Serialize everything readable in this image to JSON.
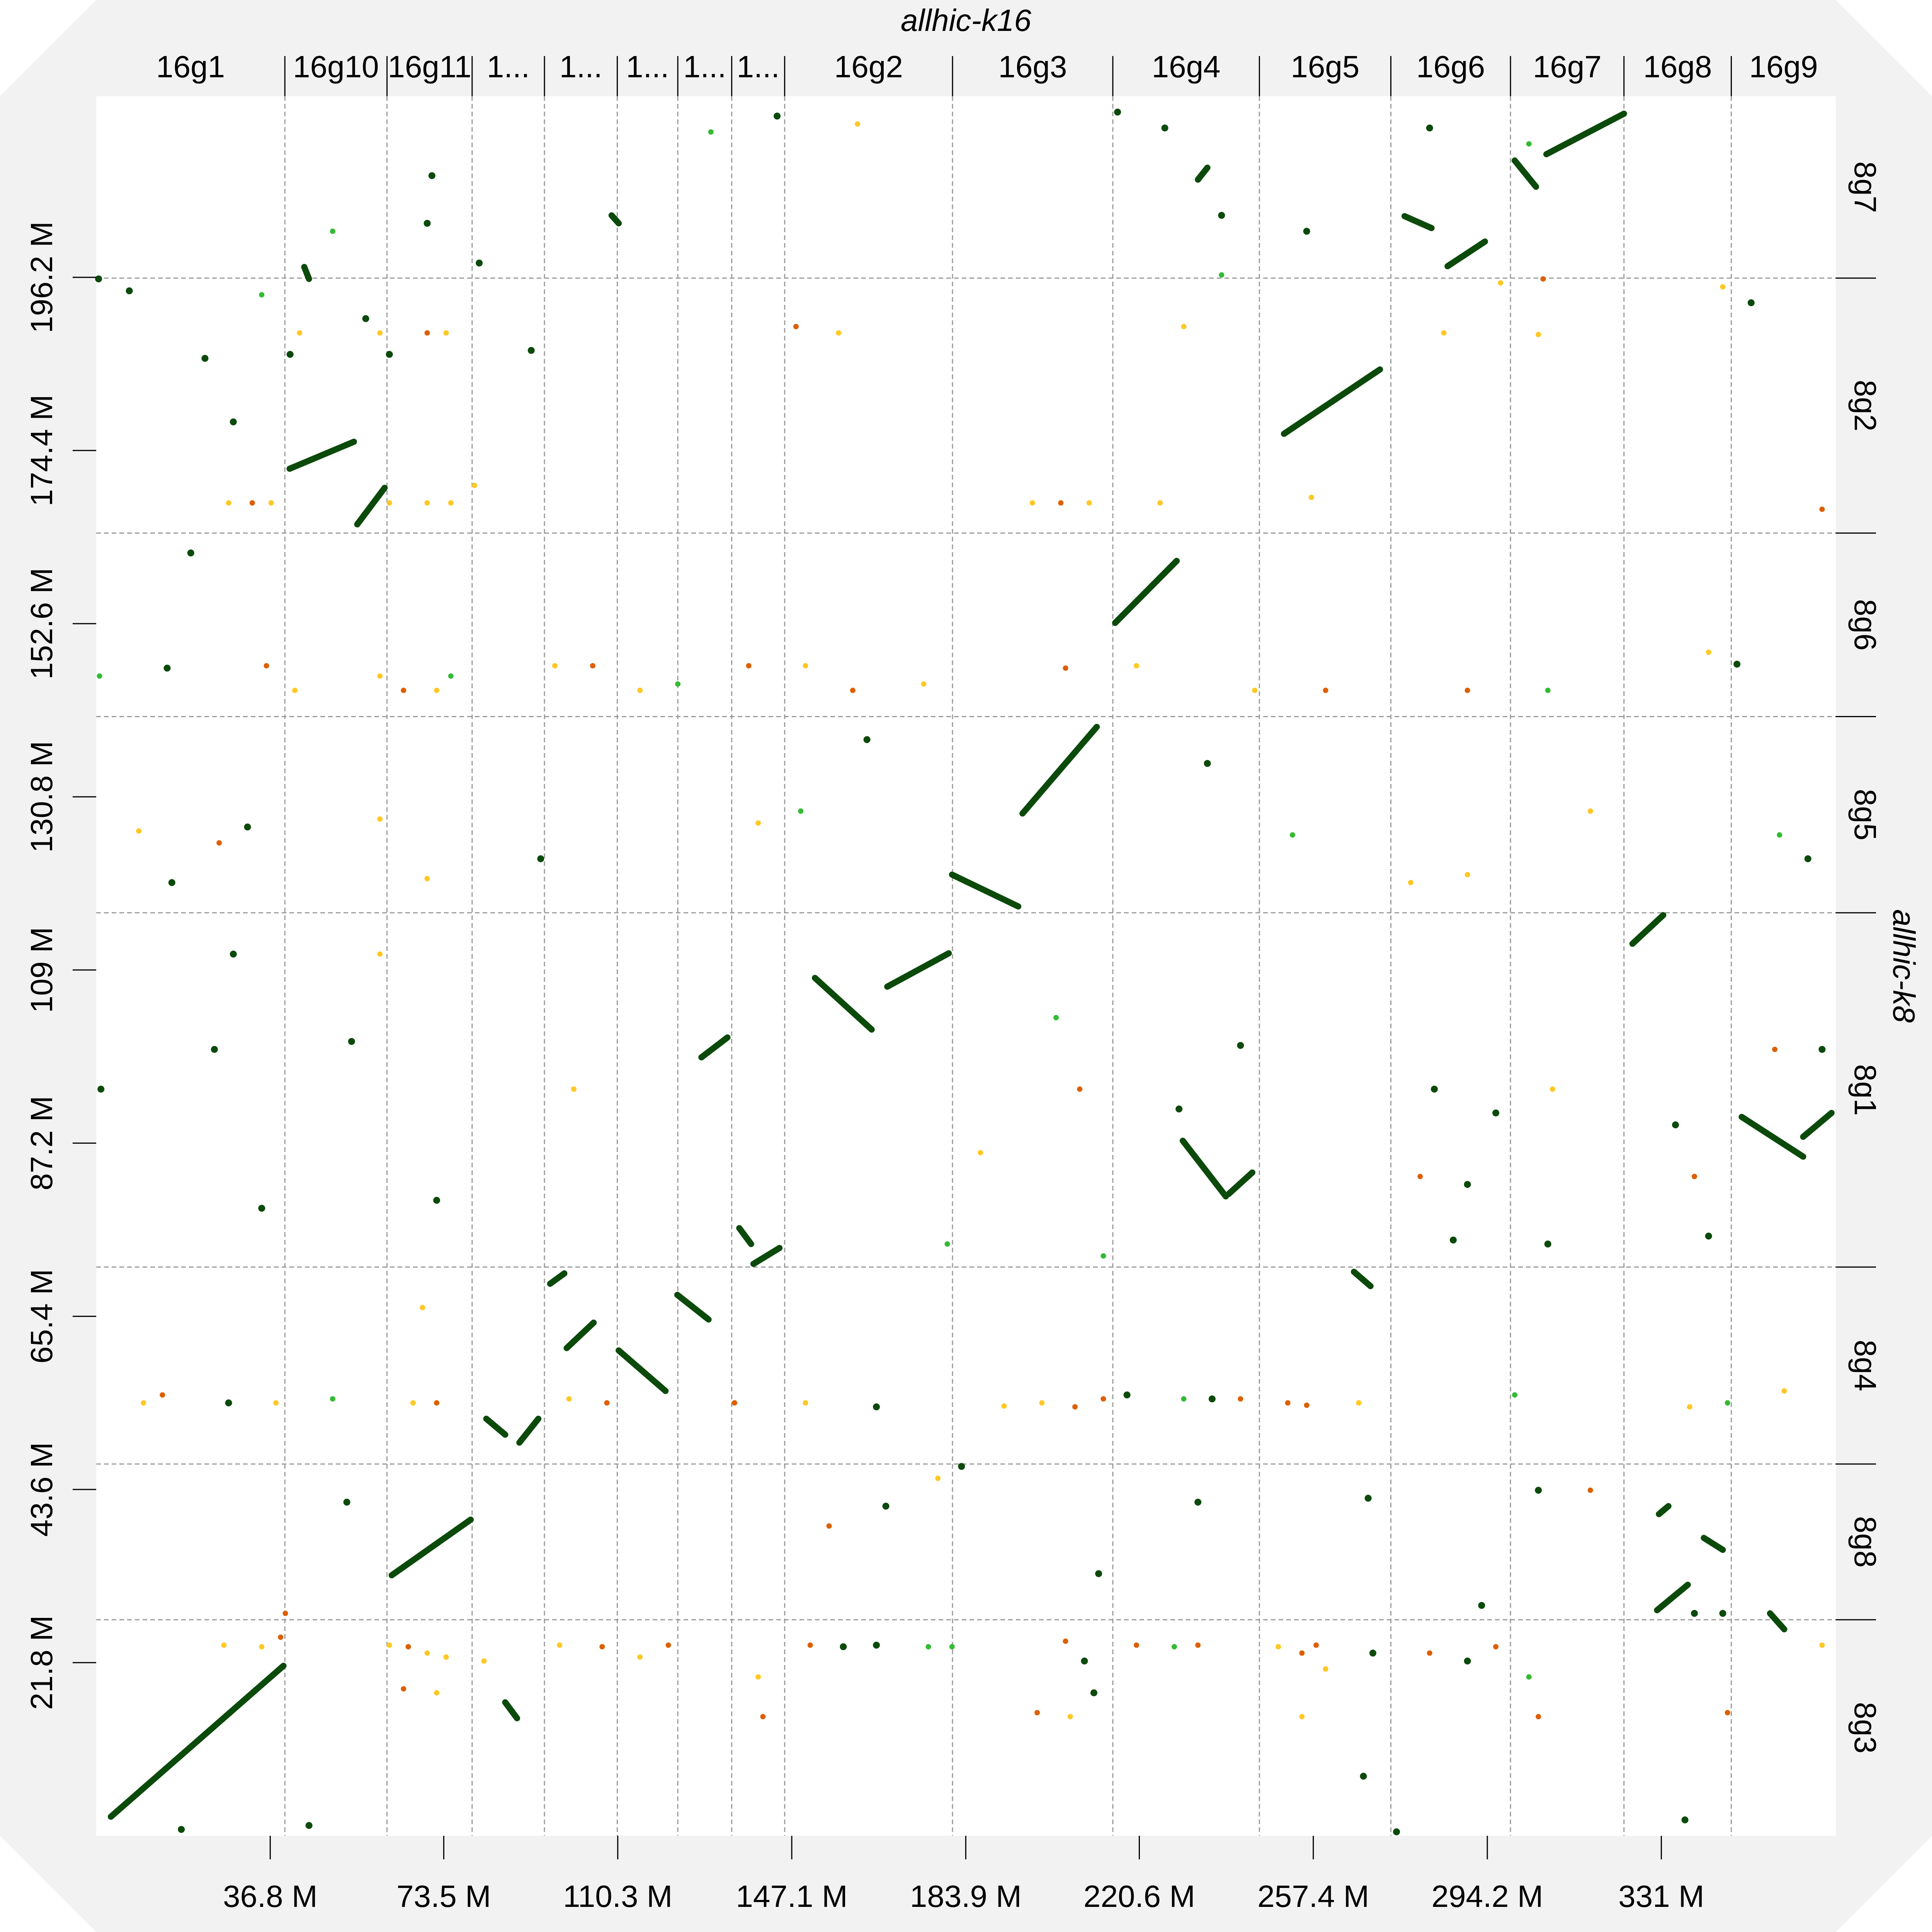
{
  "chart_data": {
    "type": "scatter",
    "title": "allhic-k16",
    "xlabel": "allhic-k16",
    "ylabel": "allhic-k8",
    "xlim": [
      0,
      367.9
    ],
    "ylim": [
      0,
      219.0
    ],
    "grid": "dashed contig boundaries",
    "x_ticks": [
      {
        "value": 36.8,
        "label": "36.8 M"
      },
      {
        "value": 73.5,
        "label": "73.5 M"
      },
      {
        "value": 110.3,
        "label": "110.3 M"
      },
      {
        "value": 147.1,
        "label": "147.1 M"
      },
      {
        "value": 183.9,
        "label": "183.9 M"
      },
      {
        "value": 220.6,
        "label": "220.6 M"
      },
      {
        "value": 257.4,
        "label": "257.4 M"
      },
      {
        "value": 294.2,
        "label": "294.2 M"
      },
      {
        "value": 331,
        "label": "331 M"
      }
    ],
    "y_ticks": [
      {
        "value": 21.8,
        "label": "21.8 M"
      },
      {
        "value": 43.6,
        "label": "43.6 M"
      },
      {
        "value": 65.4,
        "label": "65.4 M"
      },
      {
        "value": 87.2,
        "label": "87.2 M"
      },
      {
        "value": 109,
        "label": "109 M"
      },
      {
        "value": 130.8,
        "label": "130.8 M"
      },
      {
        "value": 152.6,
        "label": "152.6 M"
      },
      {
        "value": 174.4,
        "label": "174.4 M"
      },
      {
        "value": 196.2,
        "label": "196.2 M"
      }
    ],
    "x_contigs": [
      {
        "label": "16g1",
        "start": 0,
        "end": 39.9
      },
      {
        "label": "16g10",
        "start": 39.9,
        "end": 61.5
      },
      {
        "label": "16g11",
        "start": 61.5,
        "end": 79.5
      },
      {
        "label": "1...",
        "start": 79.5,
        "end": 94.8
      },
      {
        "label": "1...",
        "start": 94.8,
        "end": 110.2
      },
      {
        "label": "1...",
        "start": 110.2,
        "end": 123.0
      },
      {
        "label": "1...",
        "start": 123.0,
        "end": 134.4
      },
      {
        "label": "1...",
        "start": 134.4,
        "end": 145.6
      },
      {
        "label": "16g2",
        "start": 145.6,
        "end": 181.1
      },
      {
        "label": "16g3",
        "start": 181.1,
        "end": 215.0
      },
      {
        "label": "16g4",
        "start": 215.0,
        "end": 246.0
      },
      {
        "label": "16g5",
        "start": 246.0,
        "end": 273.8
      },
      {
        "label": "16g6",
        "start": 273.8,
        "end": 299.1
      },
      {
        "label": "16g7",
        "start": 299.1,
        "end": 323.1
      },
      {
        "label": "16g8",
        "start": 323.1,
        "end": 345.8
      },
      {
        "label": "16g9",
        "start": 345.8,
        "end": 367.9
      }
    ],
    "y_contigs": [
      {
        "label": "8g3",
        "start": 0,
        "end": 27.2
      },
      {
        "label": "8g8",
        "start": 27.2,
        "end": 46.8
      },
      {
        "label": "8g4",
        "start": 46.8,
        "end": 71.6
      },
      {
        "label": "8g1",
        "start": 71.6,
        "end": 116.2
      },
      {
        "label": "8g5",
        "start": 116.2,
        "end": 140.9
      },
      {
        "label": "8g6",
        "start": 140.9,
        "end": 164.0
      },
      {
        "label": "8g2",
        "start": 164.0,
        "end": 196.1
      },
      {
        "label": "8g7",
        "start": 196.1,
        "end": 219.0
      }
    ],
    "colors": {
      "d": "#0b4a0b",
      "g": "#33bb33",
      "y": "#ffc826",
      "o": "#dd5f00"
    },
    "segments": [
      [
        3.1,
        2.4,
        39.6,
        21.4
      ],
      [
        40.9,
        172.1,
        54.5,
        175.5
      ],
      [
        55.2,
        165.1,
        61.0,
        169.7
      ],
      [
        62.5,
        32.8,
        79.2,
        39.8
      ],
      [
        195.9,
        128.7,
        211.6,
        139.6
      ],
      [
        181.0,
        121.0,
        195.0,
        117.0
      ],
      [
        215.5,
        152.7,
        228.5,
        160.5
      ],
      [
        229.8,
        87.5,
        238.9,
        80.5
      ],
      [
        239.5,
        80.8,
        244.5,
        83.5
      ],
      [
        251.2,
        176.5,
        271.5,
        184.6
      ],
      [
        276.7,
        203.9,
        282.4,
        202.4
      ],
      [
        285.8,
        197.6,
        293.7,
        200.7
      ],
      [
        306.7,
        211.7,
        323.1,
        216.8
      ],
      [
        300.0,
        210.9,
        304.5,
        207.6
      ],
      [
        324.9,
        112.3,
        331.4,
        115.9
      ],
      [
        167.3,
        106.9,
        180.3,
        111.1
      ],
      [
        152.0,
        108.0,
        164.0,
        101.5
      ],
      [
        96.0,
        69.5,
        99.0,
        70.8
      ],
      [
        99.5,
        61.4,
        105.2,
        64.6
      ],
      [
        110.5,
        61.1,
        120.4,
        56.0
      ],
      [
        122.9,
        68.1,
        129.5,
        65.0
      ],
      [
        82.5,
        52.5,
        86.5,
        50.5
      ],
      [
        89.5,
        49.5,
        93.5,
        52.5
      ],
      [
        136.0,
        76.5,
        138.5,
        74.5
      ],
      [
        139.0,
        72.0,
        144.5,
        74.0
      ],
      [
        128.0,
        98.0,
        133.5,
        100.5
      ],
      [
        330.1,
        28.4,
        336.6,
        31.6
      ],
      [
        340.0,
        37.5,
        344.0,
        36.0
      ],
      [
        348.0,
        90.5,
        361.0,
        85.5
      ],
      [
        361.0,
        88.0,
        367.0,
        91.0
      ],
      [
        266.0,
        71.0,
        269.5,
        69.2
      ],
      [
        86.5,
        16.8,
        89.0,
        14.8
      ],
      [
        233.0,
        208.5,
        235.0,
        210.0
      ],
      [
        109.0,
        204.0,
        110.5,
        203.0
      ],
      [
        44.0,
        197.5,
        45.0,
        196.0
      ],
      [
        354.0,
        28.0,
        357.0,
        26.0
      ],
      [
        330.5,
        40.5,
        332.5,
        41.5
      ]
    ],
    "points": [
      [
        0.5,
        196.0,
        "d"
      ],
      [
        23.0,
        186.0,
        "d"
      ],
      [
        29.0,
        178.0,
        "d"
      ],
      [
        41.0,
        186.5,
        "d"
      ],
      [
        57.0,
        191.0,
        "d"
      ],
      [
        62.0,
        186.5,
        "d"
      ],
      [
        81.0,
        198.0,
        "d"
      ],
      [
        92.0,
        187.0,
        "d"
      ],
      [
        35.0,
        194.0,
        "g"
      ],
      [
        7.0,
        194.5,
        "d"
      ],
      [
        20.0,
        161.5,
        "d"
      ],
      [
        71.0,
        209.0,
        "d"
      ],
      [
        28.0,
        167.8,
        "y"
      ],
      [
        33.0,
        167.8,
        "o"
      ],
      [
        37.0,
        167.8,
        "y"
      ],
      [
        62.0,
        167.8,
        "y"
      ],
      [
        70.0,
        167.8,
        "y"
      ],
      [
        75.0,
        167.8,
        "y"
      ],
      [
        80.0,
        170.0,
        "y"
      ],
      [
        198.0,
        167.8,
        "y"
      ],
      [
        204.0,
        167.8,
        "o"
      ],
      [
        210.0,
        167.8,
        "y"
      ],
      [
        225.0,
        167.8,
        "y"
      ],
      [
        257.0,
        168.5,
        "y"
      ],
      [
        43.0,
        189.2,
        "y"
      ],
      [
        60.0,
        189.2,
        "y"
      ],
      [
        70.0,
        189.2,
        "o"
      ],
      [
        74.0,
        189.2,
        "y"
      ],
      [
        148.0,
        190.0,
        "o"
      ],
      [
        157.0,
        189.2,
        "y"
      ],
      [
        230.0,
        190.0,
        "y"
      ],
      [
        285.0,
        189.2,
        "y"
      ],
      [
        305.0,
        189.0,
        "y"
      ],
      [
        365.0,
        167.0,
        "o"
      ],
      [
        0.7,
        146.0,
        "g"
      ],
      [
        15.0,
        147.0,
        "d"
      ],
      [
        36.0,
        147.3,
        "o"
      ],
      [
        42.0,
        144.2,
        "y"
      ],
      [
        60.0,
        146.0,
        "y"
      ],
      [
        65.0,
        144.2,
        "o"
      ],
      [
        72.0,
        144.2,
        "y"
      ],
      [
        75.0,
        146.0,
        "g"
      ],
      [
        97.0,
        147.3,
        "y"
      ],
      [
        105.0,
        147.3,
        "o"
      ],
      [
        115.0,
        144.2,
        "y"
      ],
      [
        123.0,
        145.0,
        "g"
      ],
      [
        138.0,
        147.3,
        "o"
      ],
      [
        150.0,
        147.3,
        "y"
      ],
      [
        160.0,
        144.2,
        "o"
      ],
      [
        175.0,
        145.0,
        "y"
      ],
      [
        205.0,
        147.0,
        "o"
      ],
      [
        220.0,
        147.3,
        "y"
      ],
      [
        245.0,
        144.2,
        "y"
      ],
      [
        260.0,
        144.2,
        "o"
      ],
      [
        290.0,
        144.2,
        "o"
      ],
      [
        307.0,
        144.2,
        "g"
      ],
      [
        341.0,
        149.0,
        "y"
      ],
      [
        347.0,
        147.5,
        "d"
      ],
      [
        9.0,
        126.5,
        "y"
      ],
      [
        26.0,
        125.0,
        "o"
      ],
      [
        32.0,
        127.0,
        "d"
      ],
      [
        16.0,
        120.0,
        "d"
      ],
      [
        60.0,
        128.0,
        "y"
      ],
      [
        70.0,
        120.5,
        "y"
      ],
      [
        94.0,
        123.0,
        "d"
      ],
      [
        140.0,
        127.5,
        "y"
      ],
      [
        149.0,
        129.0,
        "g"
      ],
      [
        163.0,
        138.0,
        "d"
      ],
      [
        235.0,
        135.0,
        "d"
      ],
      [
        253.0,
        126.0,
        "g"
      ],
      [
        278.0,
        120.0,
        "y"
      ],
      [
        290.0,
        121.0,
        "y"
      ],
      [
        316.0,
        129.0,
        "y"
      ],
      [
        356.0,
        126.0,
        "g"
      ],
      [
        362.0,
        123.0,
        "d"
      ],
      [
        29.0,
        111.0,
        "d"
      ],
      [
        25.0,
        99.0,
        "d"
      ],
      [
        60.0,
        111.0,
        "y"
      ],
      [
        54.0,
        100.0,
        "d"
      ],
      [
        101.0,
        94.0,
        "y"
      ],
      [
        203.0,
        103.0,
        "g"
      ],
      [
        208.0,
        94.0,
        "o"
      ],
      [
        229.0,
        91.5,
        "d"
      ],
      [
        242.0,
        99.5,
        "d"
      ],
      [
        283.0,
        94.0,
        "d"
      ],
      [
        296.0,
        91.0,
        "d"
      ],
      [
        308.0,
        94.0,
        "y"
      ],
      [
        334.0,
        89.5,
        "d"
      ],
      [
        338.0,
        83.0,
        "o"
      ],
      [
        355.0,
        99.0,
        "o"
      ],
      [
        365.0,
        99.0,
        "d"
      ],
      [
        280.0,
        83.0,
        "o"
      ],
      [
        290.0,
        82.0,
        "d"
      ],
      [
        1.0,
        94.0,
        "d"
      ],
      [
        35.0,
        79.0,
        "d"
      ],
      [
        72.0,
        80.0,
        "d"
      ],
      [
        180.0,
        74.5,
        "g"
      ],
      [
        187.0,
        86.0,
        "y"
      ],
      [
        213.0,
        73.0,
        "g"
      ],
      [
        287.0,
        75.0,
        "d"
      ],
      [
        307.0,
        74.5,
        "d"
      ],
      [
        341.0,
        75.5,
        "d"
      ],
      [
        69.0,
        66.5,
        "y"
      ],
      [
        10.0,
        54.5,
        "y"
      ],
      [
        14.0,
        55.5,
        "o"
      ],
      [
        28.0,
        54.5,
        "d"
      ],
      [
        38.0,
        54.5,
        "y"
      ],
      [
        50.0,
        55.0,
        "g"
      ],
      [
        67.0,
        54.5,
        "y"
      ],
      [
        72.0,
        54.5,
        "o"
      ],
      [
        100.0,
        55.0,
        "y"
      ],
      [
        108.0,
        54.5,
        "o"
      ],
      [
        135.0,
        54.5,
        "o"
      ],
      [
        150.0,
        54.5,
        "y"
      ],
      [
        165.0,
        54.0,
        "d"
      ],
      [
        192.0,
        54.1,
        "y"
      ],
      [
        200.0,
        54.5,
        "y"
      ],
      [
        207.0,
        54.0,
        "o"
      ],
      [
        213.0,
        55.0,
        "o"
      ],
      [
        218.0,
        55.5,
        "d"
      ],
      [
        230.0,
        55.0,
        "g"
      ],
      [
        236.0,
        55.0,
        "d"
      ],
      [
        242.0,
        55.0,
        "o"
      ],
      [
        252.0,
        54.5,
        "o"
      ],
      [
        256.0,
        54.2,
        "o"
      ],
      [
        267.0,
        54.5,
        "y"
      ],
      [
        300.0,
        55.5,
        "g"
      ],
      [
        337.0,
        54.0,
        "y"
      ],
      [
        345.0,
        54.5,
        "g"
      ],
      [
        357.0,
        56.0,
        "y"
      ],
      [
        53.0,
        42.0,
        "d"
      ],
      [
        178.0,
        45.0,
        "y"
      ],
      [
        183.0,
        46.5,
        "d"
      ],
      [
        155.0,
        39.0,
        "o"
      ],
      [
        167.0,
        41.5,
        "d"
      ],
      [
        269.0,
        42.5,
        "d"
      ],
      [
        305.0,
        43.5,
        "d"
      ],
      [
        316.0,
        43.5,
        "o"
      ],
      [
        233.0,
        42.0,
        "d"
      ],
      [
        212.0,
        33.0,
        "d"
      ],
      [
        293.0,
        29.0,
        "d"
      ],
      [
        338.0,
        28.0,
        "d"
      ],
      [
        344.0,
        28.0,
        "d"
      ],
      [
        27.0,
        24.0,
        "y"
      ],
      [
        35.0,
        23.8,
        "y"
      ],
      [
        39.0,
        25.0,
        "o"
      ],
      [
        40.0,
        28.0,
        "o"
      ],
      [
        62.0,
        24.0,
        "y"
      ],
      [
        66.0,
        23.8,
        "o"
      ],
      [
        70.0,
        23.0,
        "y"
      ],
      [
        74.0,
        22.5,
        "y"
      ],
      [
        65.0,
        18.5,
        "o"
      ],
      [
        72.0,
        18.0,
        "y"
      ],
      [
        82.0,
        22.0,
        "y"
      ],
      [
        98.0,
        24.0,
        "y"
      ],
      [
        107.0,
        23.8,
        "o"
      ],
      [
        115.0,
        22.5,
        "y"
      ],
      [
        121.0,
        24.0,
        "o"
      ],
      [
        140.0,
        20.0,
        "y"
      ],
      [
        141.0,
        15.0,
        "o"
      ],
      [
        151.0,
        24.0,
        "o"
      ],
      [
        158.0,
        23.8,
        "d"
      ],
      [
        165.0,
        24.0,
        "d"
      ],
      [
        176.0,
        23.8,
        "g"
      ],
      [
        181.0,
        23.8,
        "g"
      ],
      [
        205.0,
        24.5,
        "o"
      ],
      [
        209.0,
        22.0,
        "d"
      ],
      [
        211.0,
        18.0,
        "d"
      ],
      [
        220.0,
        24.0,
        "o"
      ],
      [
        228.0,
        23.8,
        "g"
      ],
      [
        233.0,
        24.0,
        "o"
      ],
      [
        250.0,
        23.8,
        "y"
      ],
      [
        255.0,
        23.0,
        "o"
      ],
      [
        258.0,
        24.0,
        "o"
      ],
      [
        260.0,
        21.0,
        "y"
      ],
      [
        255.0,
        15.0,
        "y"
      ],
      [
        270.0,
        23.0,
        "d"
      ],
      [
        282.0,
        23.0,
        "o"
      ],
      [
        290.0,
        22.0,
        "d"
      ],
      [
        296.0,
        23.8,
        "o"
      ],
      [
        303.0,
        20.0,
        "g"
      ],
      [
        305.0,
        15.0,
        "o"
      ],
      [
        345.0,
        15.5,
        "o"
      ],
      [
        365.0,
        24.0,
        "y"
      ],
      [
        199.0,
        15.5,
        "o"
      ],
      [
        206.0,
        15.0,
        "y"
      ],
      [
        275.0,
        0.5,
        "d"
      ],
      [
        18.0,
        0.8,
        "d"
      ],
      [
        45.0,
        1.3,
        "d"
      ],
      [
        268.0,
        7.5,
        "d"
      ],
      [
        336.0,
        2.0,
        "d"
      ],
      [
        303.0,
        213.0,
        "g"
      ],
      [
        282.0,
        215.0,
        "d"
      ],
      [
        238.0,
        204.0,
        "d"
      ],
      [
        226.0,
        215.0,
        "d"
      ],
      [
        216.0,
        217.0,
        "d"
      ],
      [
        144.0,
        216.5,
        "d"
      ],
      [
        130.0,
        214.5,
        "g"
      ],
      [
        161.0,
        215.5,
        "y"
      ],
      [
        50.0,
        202.0,
        "g"
      ],
      [
        70.0,
        203.0,
        "d"
      ],
      [
        256.0,
        202.0,
        "d"
      ],
      [
        238.0,
        196.5,
        "g"
      ],
      [
        297.0,
        195.5,
        "y"
      ],
      [
        306.0,
        196.0,
        "o"
      ],
      [
        344.0,
        195.0,
        "y"
      ],
      [
        350.0,
        193.0,
        "d"
      ]
    ]
  }
}
